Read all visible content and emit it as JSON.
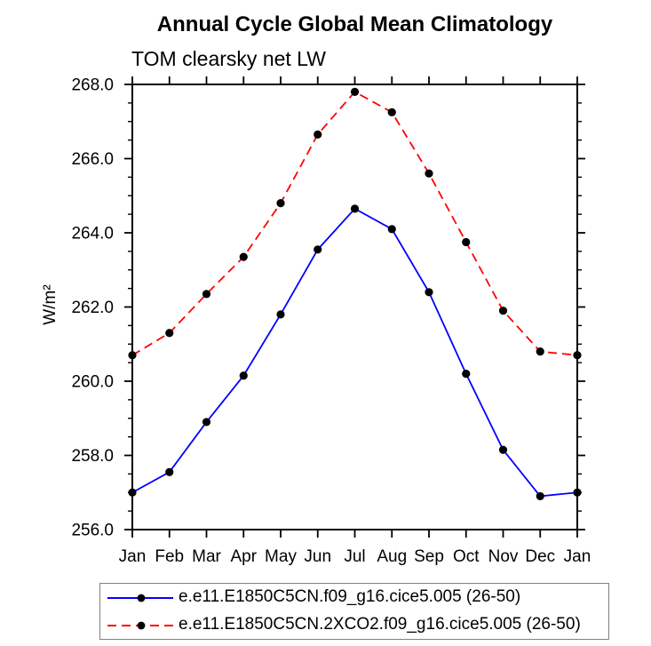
{
  "chart_data": {
    "type": "line",
    "title": "Annual Cycle Global Mean Climatology",
    "subtitle": "TOM clearsky net LW",
    "ylabel": "W/m²",
    "xlabel": "",
    "categories": [
      "Jan",
      "Feb",
      "Mar",
      "Apr",
      "May",
      "Jun",
      "Jul",
      "Aug",
      "Sep",
      "Oct",
      "Nov",
      "Dec",
      "Jan"
    ],
    "ylim": [
      256.0,
      268.0
    ],
    "ytick_step": 2.0,
    "ytick_minor_step": 0.5,
    "ytick_labels": [
      "256.0",
      "258.0",
      "260.0",
      "262.0",
      "264.0",
      "266.0",
      "268.0"
    ],
    "grid": false,
    "legend_position": "bottom",
    "axis_color": "#000000",
    "marker": "filled-circle",
    "marker_color": "#000000",
    "series": [
      {
        "name": "e.e11.E1850C5CN.f09_g16.cice5.005 (26-50)",
        "color": "#0000ff",
        "line_style": "solid",
        "values": [
          257.0,
          257.55,
          258.9,
          260.15,
          261.8,
          263.55,
          264.65,
          264.1,
          262.4,
          260.2,
          258.15,
          256.9,
          257.0
        ]
      },
      {
        "name": "e.e11.E1850C5CN.2XCO2.f09_g16.cice5.005 (26-50)",
        "color": "#ff0000",
        "line_style": "dashed",
        "values": [
          260.7,
          261.3,
          262.35,
          263.35,
          264.8,
          266.65,
          267.8,
          267.25,
          265.6,
          263.75,
          261.9,
          260.8,
          260.7
        ]
      }
    ],
    "legend_border_color": "#808080"
  }
}
